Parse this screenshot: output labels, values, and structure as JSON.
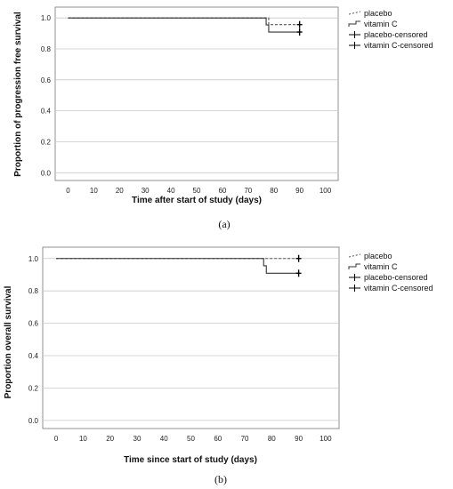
{
  "chart_data": [
    {
      "type": "line",
      "panel_label": "(a)",
      "xlabel": "Time after start of study (days)",
      "ylabel": "Proportion of progression free survival",
      "xlim": [
        -5,
        105
      ],
      "ylim": [
        -0.05,
        1.07
      ],
      "x_ticks": [
        "0",
        "10",
        "20",
        "30",
        "40",
        "50",
        "60",
        "70",
        "80",
        "90",
        "100"
      ],
      "y_ticks": [
        "0.0",
        "0.2",
        "0.4",
        "0.6",
        "0.8",
        "1.0"
      ],
      "grid": "horizontal",
      "legend_position": "right",
      "legend": [
        "placebo",
        "vitamin C",
        "placebo-censored",
        "vitamin C-censored"
      ],
      "series": [
        {
          "name": "placebo",
          "style": "dashed",
          "color": "#555555",
          "x": [
            0,
            78,
            78,
            90
          ],
          "y": [
            1.0,
            1.0,
            0.957,
            0.957
          ]
        },
        {
          "name": "vitamin C",
          "style": "solid",
          "color": "#333333",
          "x": [
            0,
            77,
            77,
            78,
            78,
            90
          ],
          "y": [
            1.0,
            1.0,
            0.955,
            0.955,
            0.909,
            0.909
          ]
        },
        {
          "name": "placebo-censored",
          "style": "marker",
          "color": "#000000",
          "x": [
            90
          ],
          "y": [
            0.957
          ]
        },
        {
          "name": "vitamin C-censored",
          "style": "marker",
          "color": "#000000",
          "x": [
            90
          ],
          "y": [
            0.909
          ]
        }
      ]
    },
    {
      "type": "line",
      "panel_label": "(b)",
      "xlabel": "Time since start of study (days)",
      "ylabel": "Proportion overall survival",
      "xlim": [
        -5,
        105
      ],
      "ylim": [
        -0.05,
        1.07
      ],
      "x_ticks": [
        "0",
        "10",
        "20",
        "30",
        "40",
        "50",
        "60",
        "70",
        "80",
        "90",
        "100"
      ],
      "y_ticks": [
        "0.0",
        "0.2",
        "0.4",
        "0.6",
        "0.8",
        "1.0"
      ],
      "grid": "horizontal",
      "legend_position": "right",
      "legend": [
        "placebo",
        "vitamin C",
        "placebo-censored",
        "vitamin C-censored"
      ],
      "series": [
        {
          "name": "placebo",
          "style": "dashed",
          "color": "#555555",
          "x": [
            0,
            90
          ],
          "y": [
            1.0,
            1.0
          ]
        },
        {
          "name": "vitamin C",
          "style": "solid",
          "color": "#333333",
          "x": [
            0,
            77,
            77,
            78,
            78,
            90
          ],
          "y": [
            1.0,
            1.0,
            0.955,
            0.955,
            0.909,
            0.909
          ]
        },
        {
          "name": "placebo-censored",
          "style": "marker",
          "color": "#000000",
          "x": [
            90
          ],
          "y": [
            1.0
          ]
        },
        {
          "name": "vitamin C-censored",
          "style": "marker",
          "color": "#000000",
          "x": [
            90
          ],
          "y": [
            0.909
          ]
        }
      ]
    }
  ]
}
